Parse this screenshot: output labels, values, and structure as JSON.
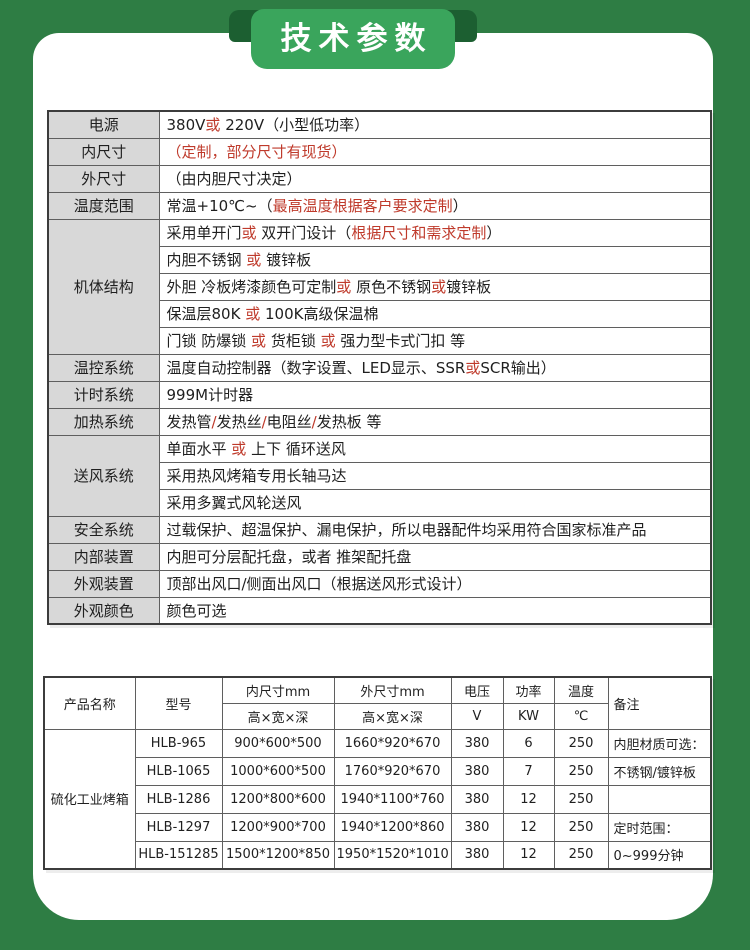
{
  "banner": {
    "title": "技术参数"
  },
  "colors": {
    "background_green": "#2e7d44",
    "ribbon_green": "#3aa55c",
    "fold_green": "#1c5f31",
    "accent_red": "#bf3a2b",
    "label_gray": "#d8d8d8",
    "border_gray": "#5f5f5f"
  },
  "spec_table": {
    "groups": [
      {
        "label": "电源",
        "lines": [
          [
            {
              "t": "380V"
            },
            {
              "t": "或",
              "r": true
            },
            {
              "t": " 220V（小型低功率）"
            }
          ]
        ]
      },
      {
        "label": "内尺寸",
        "lines": [
          [
            {
              "t": "（定制，部分尺寸有现货）",
              "r": true
            }
          ]
        ]
      },
      {
        "label": "外尺寸",
        "lines": [
          [
            {
              "t": "（由内胆尺寸决定）"
            }
          ]
        ]
      },
      {
        "label": "温度范围",
        "lines": [
          [
            {
              "t": "常温+10℃~（"
            },
            {
              "t": "最高温度根据客户要求定制",
              "r": true
            },
            {
              "t": "）"
            }
          ]
        ]
      },
      {
        "label": "机体结构",
        "lines": [
          [
            {
              "t": "采用单开门"
            },
            {
              "t": "或",
              "r": true
            },
            {
              "t": " 双开门设计（"
            },
            {
              "t": "根据尺寸和需求定制",
              "r": true
            },
            {
              "t": "）"
            }
          ],
          [
            {
              "t": "内胆不锈钢 "
            },
            {
              "t": "或",
              "r": true
            },
            {
              "t": " 镀锌板"
            }
          ],
          [
            {
              "t": "外胆 冷板烤漆颜色可定制"
            },
            {
              "t": "或",
              "r": true
            },
            {
              "t": " 原色不锈钢"
            },
            {
              "t": "或",
              "r": true
            },
            {
              "t": "镀锌板"
            }
          ],
          [
            {
              "t": "保温层80K "
            },
            {
              "t": "或",
              "r": true
            },
            {
              "t": " 100K高级保温棉"
            }
          ],
          [
            {
              "t": "门锁 防爆锁 "
            },
            {
              "t": "或",
              "r": true
            },
            {
              "t": " 货柜锁 "
            },
            {
              "t": "或",
              "r": true
            },
            {
              "t": " 强力型卡式门扣 等"
            }
          ]
        ]
      },
      {
        "label": "温控系统",
        "lines": [
          [
            {
              "t": "温度自动控制器（数字设置、LED显示、SSR"
            },
            {
              "t": "或",
              "r": true
            },
            {
              "t": "SCR输出）"
            }
          ]
        ]
      },
      {
        "label": "计时系统",
        "lines": [
          [
            {
              "t": "999M计时器"
            }
          ]
        ]
      },
      {
        "label": "加热系统",
        "lines": [
          [
            {
              "t": "发热管"
            },
            {
              "t": "/",
              "r": true
            },
            {
              "t": "发热丝"
            },
            {
              "t": "/",
              "r": true
            },
            {
              "t": "电阻丝"
            },
            {
              "t": "/",
              "r": true
            },
            {
              "t": "发热板 等"
            }
          ]
        ]
      },
      {
        "label": "送风系统",
        "lines": [
          [
            {
              "t": "单面水平 "
            },
            {
              "t": "或",
              "r": true
            },
            {
              "t": " 上下 循环送风"
            }
          ],
          [
            {
              "t": "采用热风烤箱专用长轴马达"
            }
          ],
          [
            {
              "t": "采用多翼式风轮送风"
            }
          ]
        ]
      },
      {
        "label": "安全系统",
        "lines": [
          [
            {
              "t": "过载保护、超温保护、漏电保护，所以电器配件均采用符合国家标准产品"
            }
          ]
        ]
      },
      {
        "label": "内部装置",
        "lines": [
          [
            {
              "t": "内胆可分层配托盘，或者 推架配托盘"
            }
          ]
        ]
      },
      {
        "label": "外观装置",
        "lines": [
          [
            {
              "t": "顶部出风口/侧面出风口（根据送风形式设计）"
            }
          ]
        ]
      },
      {
        "label": "外观颜色",
        "lines": [
          [
            {
              "t": "颜色可选"
            }
          ]
        ]
      }
    ]
  },
  "product_table": {
    "header": {
      "product_name": "产品名称",
      "model": "型号",
      "inner_size": "内尺寸mm",
      "outer_size": "外尺寸mm",
      "dims": "高×宽×深",
      "voltage": "电压",
      "voltage_unit": "V",
      "power": "功率",
      "power_unit": "KW",
      "temperature": "温度",
      "temp_unit": "℃",
      "remark": "备注"
    },
    "product_name_value": "硫化工业烤箱",
    "rows": [
      {
        "model": "HLB-965",
        "inner": "900*600*500",
        "outer": "1660*920*670",
        "voltage": "380",
        "power": "6",
        "temp": "250",
        "remark": "内胆材质可选："
      },
      {
        "model": "HLB-1065",
        "inner": "1000*600*500",
        "outer": "1760*920*670",
        "voltage": "380",
        "power": "7",
        "temp": "250",
        "remark": "不锈钢/镀锌板"
      },
      {
        "model": "HLB-1286",
        "inner": "1200*800*600",
        "outer": "1940*1100*760",
        "voltage": "380",
        "power": "12",
        "temp": "250",
        "remark": ""
      },
      {
        "model": "HLB-1297",
        "inner": "1200*900*700",
        "outer": "1940*1200*860",
        "voltage": "380",
        "power": "12",
        "temp": "250",
        "remark": "定时范围："
      },
      {
        "model": "HLB-151285",
        "inner": "1500*1200*850",
        "outer": "1950*1520*1010",
        "voltage": "380",
        "power": "12",
        "temp": "250",
        "remark": "0~999分钟"
      }
    ]
  }
}
